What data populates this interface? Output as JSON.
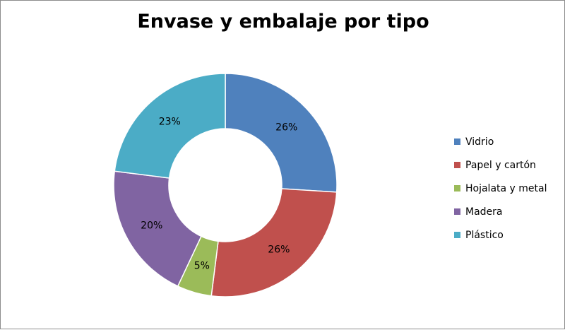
{
  "chart_data": {
    "type": "pie",
    "variant": "donut",
    "title": "Envase y embalaje por tipo",
    "categories": [
      "Vidrio",
      "Papel y cartón",
      "Hojalata y metal",
      "Madera",
      "Plástico"
    ],
    "values": [
      26,
      26,
      5,
      20,
      23
    ],
    "value_labels": [
      "26%",
      "26%",
      "5%",
      "20%",
      "23%"
    ],
    "colors": [
      "#4F81BD",
      "#C0504D",
      "#9BBB59",
      "#8064A2",
      "#4BACC6"
    ],
    "legend_position": "right",
    "start_angle": "top",
    "direction": "clockwise"
  }
}
